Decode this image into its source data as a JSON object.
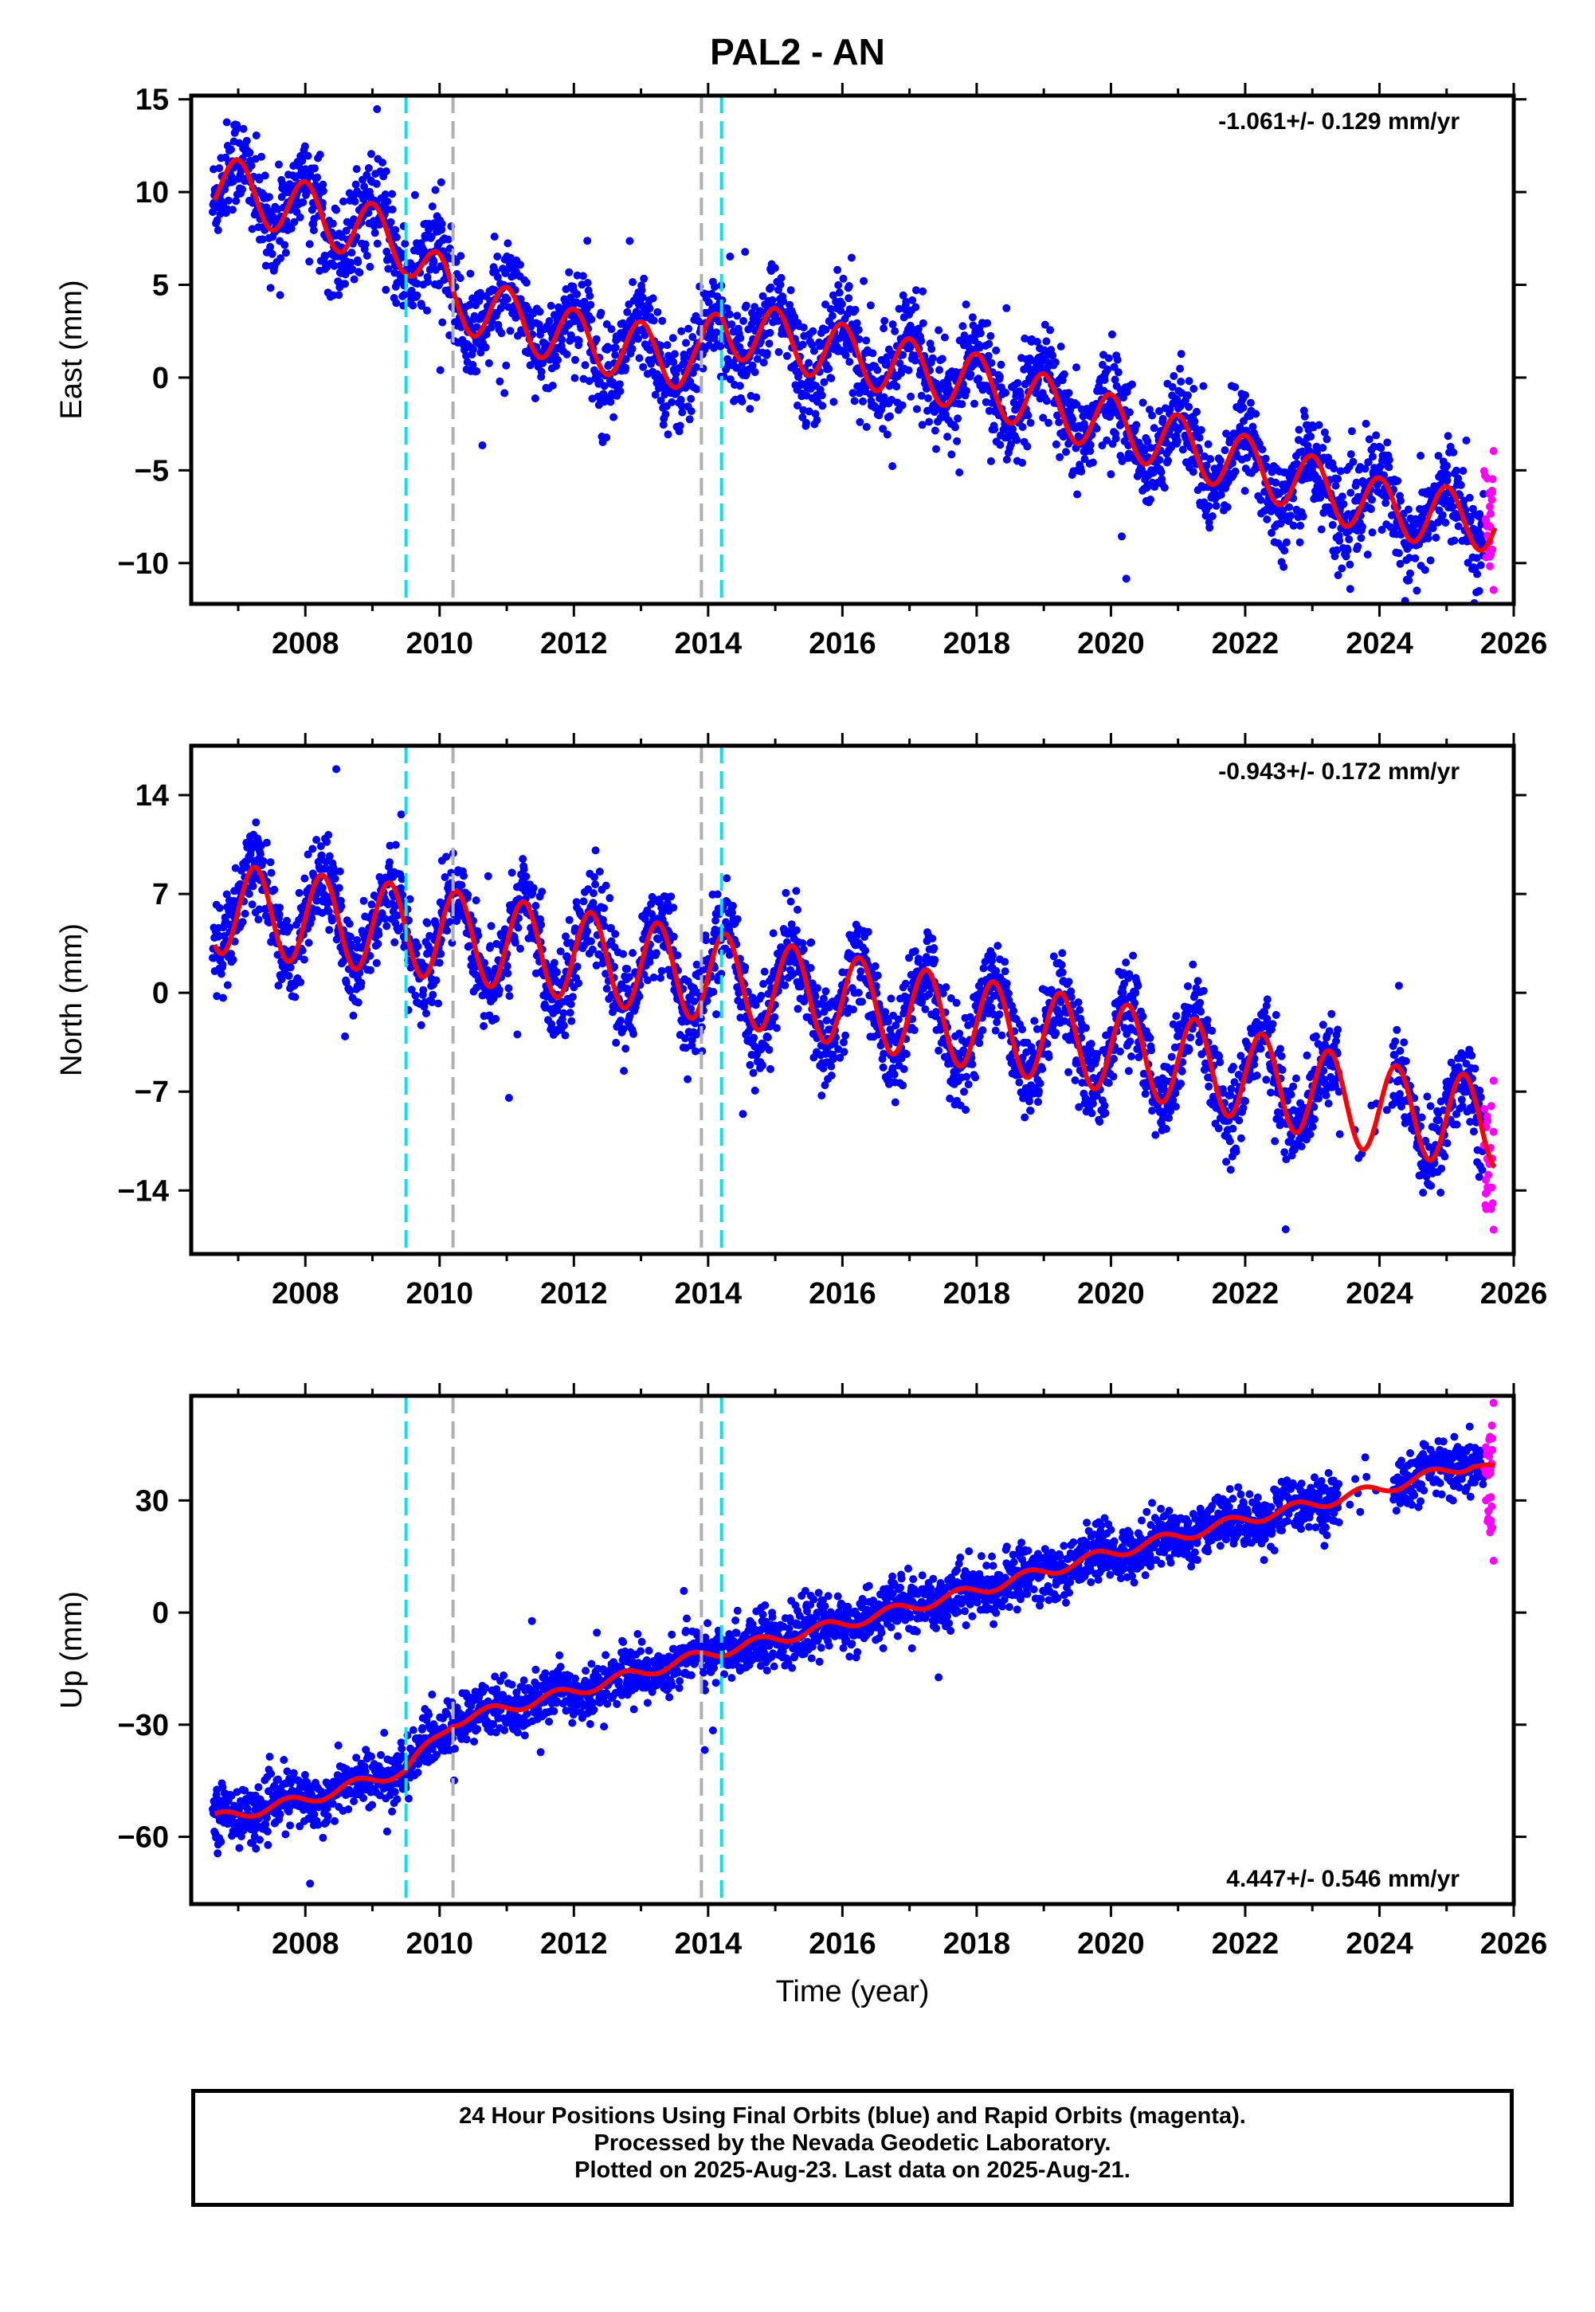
{
  "title": "PAL2 - AN",
  "colors": {
    "final_orbits": "#0000ff",
    "rapid_orbits": "#ff00ff",
    "model": "#ff0000",
    "equipment_change": "#00e5ee",
    "other_event": "#b0b0b0"
  },
  "footer": {
    "line1": "24 Hour Positions Using Final Orbits (blue) and Rapid Orbits (magenta).",
    "line2": "Processed by the Nevada Geodetic Laboratory.",
    "line3": "Plotted on 2025-Aug-23. Last data on 2025-Aug-21."
  },
  "chart_data": [
    {
      "type": "scatter",
      "ylabel": "East (mm)",
      "xlabel": "",
      "rate_label": "-1.061+/- 0.129 mm/yr",
      "rate_position": "top-right",
      "xlim": [
        2006.3,
        2026.0
      ],
      "ylim": [
        -12.2,
        15.2
      ],
      "x_ticks": [
        2008,
        2010,
        2012,
        2014,
        2016,
        2018,
        2020,
        2022,
        2024,
        2026
      ],
      "y_ticks": [
        15,
        10,
        5,
        0,
        -5,
        -10
      ],
      "y_tick_labels": [
        "15",
        "10",
        "5",
        "0",
        "−5",
        "−10"
      ],
      "events_cyan": [
        2009.5,
        2014.2
      ],
      "events_gray": [
        2010.2,
        2013.9
      ],
      "model": {
        "seasonal_amplitude": 1.6,
        "seasonal_phase": 0.25,
        "anchors": [
          [
            2006.7,
            10.5
          ],
          [
            2009.5,
            7.2
          ],
          [
            2010.2,
            4.2
          ],
          [
            2012.0,
            2.1
          ],
          [
            2013.9,
            0.8
          ],
          [
            2014.2,
            2.8
          ],
          [
            2016.0,
            1.3
          ],
          [
            2018.0,
            -0.3
          ],
          [
            2020.0,
            -2.5
          ],
          [
            2022.0,
            -4.7
          ],
          [
            2023.0,
            -5.8
          ],
          [
            2024.0,
            -7.0
          ],
          [
            2025.7,
            -7.8
          ]
        ]
      },
      "scatter_sigma": 1.3,
      "rapid_x": [
        2025.55,
        2025.7
      ],
      "rapid_y": [
        -11.6,
        -3.8
      ]
    },
    {
      "type": "scatter",
      "ylabel": "North (mm)",
      "xlabel": "",
      "rate_label": "-0.943+/- 0.172 mm/yr",
      "rate_position": "top-right",
      "xlim": [
        2006.3,
        2026.0
      ],
      "ylim": [
        -18.5,
        17.5
      ],
      "x_ticks": [
        2008,
        2010,
        2012,
        2014,
        2016,
        2018,
        2020,
        2022,
        2024,
        2026
      ],
      "y_ticks": [
        14,
        7,
        0,
        -7,
        -14
      ],
      "y_tick_labels": [
        "14",
        "7",
        "0",
        "−7",
        "−14"
      ],
      "events_cyan": [
        2009.5,
        2014.2
      ],
      "events_gray": [
        2010.2,
        2013.9
      ],
      "model": {
        "seasonal_amplitude": 3.2,
        "seasonal_phase": 0.0,
        "anchors": [
          [
            2006.7,
            6.0
          ],
          [
            2010.0,
            4.2
          ],
          [
            2014.0,
            1.2
          ],
          [
            2018.0,
            -2.2
          ],
          [
            2020.0,
            -3.8
          ],
          [
            2022.0,
            -5.8
          ],
          [
            2024.0,
            -8.2
          ],
          [
            2025.7,
            -9.2
          ]
        ]
      },
      "scatter_sigma": 1.6,
      "rapid_x": [
        2025.55,
        2025.7
      ],
      "rapid_y": [
        -17.0,
        -6.0
      ]
    },
    {
      "type": "scatter",
      "ylabel": "Up (mm)",
      "xlabel": "Time (year)",
      "rate_label": "4.447+/- 0.546 mm/yr",
      "rate_position": "bottom-right",
      "xlim": [
        2006.3,
        2026.0
      ],
      "ylim": [
        -78,
        58
      ],
      "x_ticks": [
        2008,
        2010,
        2012,
        2014,
        2016,
        2018,
        2020,
        2022,
        2024,
        2026
      ],
      "y_ticks": [
        30,
        0,
        -30,
        -60
      ],
      "y_tick_labels": [
        "30",
        "0",
        "−30",
        "−60"
      ],
      "events_cyan": [
        2009.5,
        2014.2
      ],
      "events_gray": [
        2010.2,
        2013.9
      ],
      "model": {
        "seasonal_amplitude": 1.5,
        "seasonal_phase": 0.5,
        "anchors": [
          [
            2006.7,
            -55.0
          ],
          [
            2008.0,
            -50.0
          ],
          [
            2009.5,
            -42.0
          ],
          [
            2010.2,
            -29.0
          ],
          [
            2012.0,
            -21.0
          ],
          [
            2014.0,
            -11.0
          ],
          [
            2016.0,
            -3.0
          ],
          [
            2018.0,
            6.0
          ],
          [
            2020.0,
            16.0
          ],
          [
            2022.0,
            25.0
          ],
          [
            2024.0,
            33.0
          ],
          [
            2025.4,
            40.0
          ],
          [
            2025.7,
            38.0
          ]
        ]
      },
      "scatter_sigma": 3.6,
      "rapid_x": [
        2025.55,
        2025.7
      ],
      "rapid_y": [
        13.0,
        57.0
      ]
    }
  ]
}
